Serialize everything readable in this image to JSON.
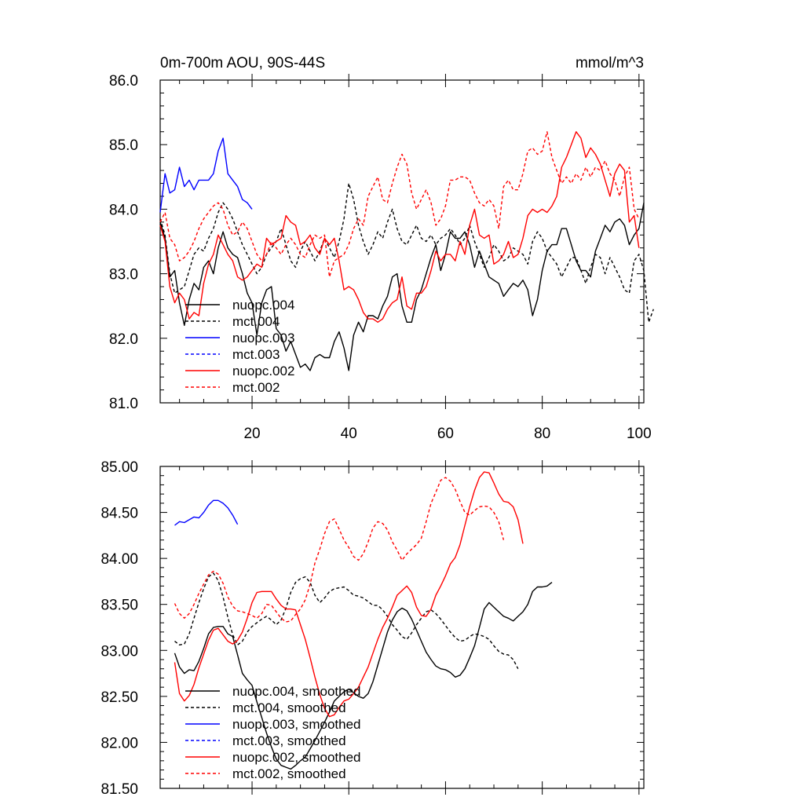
{
  "chart_data": [
    {
      "type": "line",
      "title": "0m-700m AOU, 90S-44S",
      "units": "mmol/m^3",
      "xlim": [
        1,
        101
      ],
      "ylim": [
        81.0,
        86.0
      ],
      "xticks": [
        20,
        40,
        60,
        80,
        100
      ],
      "xtick_labels": [
        "20",
        "40",
        "60",
        "80",
        "100"
      ],
      "yticks": [
        81,
        82,
        83,
        84,
        85,
        86
      ],
      "ytick_labels": [
        "81.0",
        "82.0",
        "83.0",
        "84.0",
        "85.0",
        "86.0"
      ],
      "legend_position": "lower-left",
      "series": [
        {
          "name": "nuopc.004",
          "color": "#000000",
          "dash": "solid",
          "x_start": 1,
          "values": [
            83.8,
            83.55,
            82.95,
            83.05,
            82.55,
            82.2,
            82.6,
            82.85,
            82.75,
            83.1,
            83.2,
            83.0,
            83.4,
            83.65,
            83.4,
            83.3,
            83.25,
            83.0,
            82.7,
            82.55,
            82.05,
            82.55,
            82.75,
            82.8,
            82.15,
            82.05,
            81.8,
            81.95,
            81.75,
            81.55,
            81.6,
            81.5,
            81.7,
            81.75,
            81.7,
            81.7,
            81.95,
            82.1,
            81.85,
            81.5,
            82.05,
            82.25,
            82.1,
            82.35,
            82.35,
            82.3,
            82.5,
            82.65,
            82.95,
            83.0,
            82.5,
            82.25,
            82.25,
            82.6,
            82.75,
            83.0,
            83.25,
            83.45,
            83.05,
            83.3,
            83.65,
            83.55,
            83.55,
            83.65,
            83.45,
            83.1,
            83.35,
            83.15,
            82.95,
            82.9,
            82.85,
            82.65,
            82.75,
            82.85,
            82.8,
            82.9,
            82.75,
            82.35,
            82.6,
            83.05,
            83.35,
            83.45,
            83.45,
            83.7,
            83.7,
            83.45,
            83.2,
            83.05,
            83.05,
            82.95,
            83.35,
            83.55,
            83.75,
            83.65,
            83.8,
            83.85,
            83.75,
            83.45,
            83.6,
            83.7,
            84.1
          ]
        },
        {
          "name": "mct.004",
          "color": "#000000",
          "dash": "dashed",
          "x_start": 1,
          "values": [
            83.85,
            83.6,
            83.0,
            82.7,
            82.75,
            82.8,
            83.05,
            83.3,
            83.4,
            83.35,
            83.55,
            83.7,
            83.95,
            84.1,
            84.0,
            83.85,
            83.65,
            83.45,
            83.3,
            83.15,
            83.0,
            83.1,
            83.3,
            83.4,
            83.5,
            83.7,
            83.45,
            83.2,
            83.1,
            83.35,
            83.5,
            83.35,
            83.2,
            83.35,
            83.55,
            83.4,
            83.25,
            83.5,
            83.85,
            84.4,
            84.15,
            83.75,
            83.5,
            83.3,
            83.45,
            83.65,
            83.55,
            83.8,
            84.0,
            83.7,
            83.5,
            83.45,
            83.6,
            83.75,
            83.55,
            83.5,
            83.6,
            83.45,
            83.55,
            83.6,
            83.7,
            83.6,
            83.45,
            83.55,
            83.75,
            83.5,
            83.3,
            83.1,
            83.25,
            83.45,
            83.35,
            83.2,
            83.25,
            83.4,
            83.35,
            83.3,
            83.15,
            83.5,
            83.65,
            83.55,
            83.35,
            83.25,
            83.15,
            82.95,
            83.1,
            83.25,
            83.25,
            83.05,
            82.85,
            83.1,
            83.3,
            83.25,
            83.0,
            83.25,
            83.1,
            82.95,
            82.75,
            82.7,
            83.2,
            83.3,
            83.05,
            82.25,
            82.45
          ]
        },
        {
          "name": "nuopc.003",
          "color": "#0000ff",
          "dash": "solid",
          "x_start": 1,
          "values": [
            83.95,
            84.55,
            84.25,
            84.3,
            84.65,
            84.35,
            84.45,
            84.3,
            84.45,
            84.45,
            84.45,
            84.55,
            84.9,
            85.1,
            84.55,
            84.45,
            84.35,
            84.15,
            84.1,
            84.0
          ]
        },
        {
          "name": "mct.003",
          "color": "#0000ff",
          "dash": "dashed",
          "x_start": 1,
          "values": []
        },
        {
          "name": "nuopc.002",
          "color": "#ff0000",
          "dash": "solid",
          "x_start": 1,
          "values": [
            83.75,
            83.5,
            82.8,
            82.55,
            82.7,
            82.6,
            82.3,
            82.4,
            82.35,
            82.85,
            83.15,
            83.3,
            83.6,
            83.45,
            83.3,
            83.2,
            82.95,
            82.9,
            82.95,
            83.05,
            83.15,
            83.1,
            83.55,
            83.45,
            83.5,
            83.55,
            83.9,
            83.8,
            83.75,
            83.45,
            83.5,
            83.6,
            83.4,
            83.3,
            83.55,
            83.45,
            83.55,
            83.2,
            82.75,
            82.8,
            82.75,
            82.6,
            82.4,
            82.3,
            82.3,
            82.25,
            82.3,
            82.45,
            82.55,
            82.6,
            82.95,
            82.5,
            82.45,
            82.7,
            82.7,
            82.8,
            83.05,
            83.35,
            83.2,
            83.3,
            83.3,
            83.2,
            83.5,
            83.3,
            83.75,
            84.0,
            83.6,
            83.55,
            83.6,
            83.15,
            83.2,
            83.3,
            83.5,
            83.25,
            83.3,
            83.55,
            83.9,
            84.0,
            83.95,
            84.0,
            83.95,
            84.05,
            84.2,
            84.65,
            84.8,
            85.0,
            85.2,
            85.1,
            84.8,
            84.95,
            84.85,
            84.7,
            84.45,
            84.2,
            84.55,
            84.7,
            84.6,
            83.8,
            83.9,
            83.4
          ]
        },
        {
          "name": "mct.002",
          "color": "#ff0000",
          "dash": "dashed",
          "x_start": 1,
          "values": [
            83.8,
            83.95,
            83.55,
            83.45,
            83.2,
            83.25,
            83.35,
            83.5,
            83.7,
            83.85,
            83.95,
            84.05,
            84.1,
            84.0,
            83.75,
            83.6,
            83.65,
            83.8,
            83.7,
            83.5,
            83.3,
            83.2,
            83.3,
            83.5,
            83.4,
            83.3,
            83.45,
            83.55,
            83.45,
            83.3,
            83.25,
            83.45,
            83.6,
            83.55,
            83.6,
            82.95,
            83.2,
            83.25,
            83.3,
            83.45,
            83.7,
            83.85,
            83.75,
            84.2,
            84.35,
            84.5,
            84.15,
            84.1,
            84.4,
            84.65,
            84.85,
            84.7,
            84.25,
            84.0,
            84.15,
            84.3,
            84.1,
            83.75,
            83.85,
            84.05,
            84.45,
            84.45,
            84.5,
            84.5,
            84.45,
            84.25,
            84.1,
            84.05,
            84.15,
            84.05,
            83.7,
            84.35,
            84.45,
            84.3,
            84.3,
            84.55,
            84.9,
            84.95,
            84.85,
            84.9,
            85.2,
            84.8,
            84.6,
            84.4,
            84.5,
            84.4,
            84.55,
            84.45,
            84.65,
            84.5,
            84.65,
            84.6,
            84.75,
            84.55,
            84.45,
            84.2,
            84.5,
            84.65,
            84.0,
            83.85
          ]
        }
      ]
    },
    {
      "type": "line",
      "title": "",
      "xlim": [
        1,
        101
      ],
      "ylim": [
        81.5,
        85.0
      ],
      "xticks": [
        20,
        40,
        60,
        80,
        100
      ],
      "xtick_labels": [],
      "yticks": [
        81.5,
        82.0,
        82.5,
        83.0,
        83.5,
        84.0,
        84.5,
        85.0
      ],
      "ytick_labels": [
        "81.50",
        "82.00",
        "82.50",
        "83.00",
        "83.50",
        "84.00",
        "84.50",
        "85.00"
      ],
      "legend_position": "lower-left",
      "series": [
        {
          "name": "nuopc.004, smoothed",
          "color": "#000000",
          "dash": "solid",
          "x_start": 4,
          "values": [
            82.97,
            82.82,
            82.75,
            82.79,
            82.78,
            82.88,
            83.02,
            83.18,
            83.25,
            83.26,
            83.26,
            83.18,
            83.15,
            82.95,
            82.75,
            82.68,
            82.62,
            82.44,
            82.27,
            82.1,
            81.95,
            81.82,
            81.75,
            81.73,
            81.71,
            81.75,
            81.8,
            81.84,
            81.93,
            82.02,
            82.12,
            82.22,
            82.33,
            82.45,
            82.5,
            82.55,
            82.58,
            82.54,
            82.5,
            82.48,
            82.53,
            82.66,
            82.84,
            83.02,
            83.2,
            83.33,
            83.42,
            83.46,
            83.43,
            83.34,
            83.22,
            83.1,
            82.98,
            82.9,
            82.83,
            82.8,
            82.79,
            82.76,
            82.71,
            82.73,
            82.8,
            82.92,
            83.05,
            83.25,
            83.45,
            83.52,
            83.47,
            83.42,
            83.37,
            83.35,
            83.32,
            83.37,
            83.42,
            83.5,
            83.64,
            83.69,
            83.69,
            83.7,
            83.74
          ]
        },
        {
          "name": "mct.004, smoothed",
          "color": "#000000",
          "dash": "dashed",
          "x_start": 4,
          "values": [
            83.1,
            83.06,
            83.07,
            83.18,
            83.35,
            83.52,
            83.67,
            83.8,
            83.84,
            83.76,
            83.58,
            83.36,
            83.17,
            83.06,
            83.1,
            83.2,
            83.26,
            83.3,
            83.34,
            83.37,
            83.33,
            83.28,
            83.33,
            83.46,
            83.63,
            83.74,
            83.78,
            83.8,
            83.74,
            83.6,
            83.52,
            83.57,
            83.64,
            83.67,
            83.68,
            83.69,
            83.65,
            83.6,
            83.59,
            83.57,
            83.53,
            83.49,
            83.49,
            83.44,
            83.37,
            83.28,
            83.22,
            83.15,
            83.12,
            83.19,
            83.28,
            83.35,
            83.42,
            83.44,
            83.4,
            83.34,
            83.27,
            83.2,
            83.14,
            83.1,
            83.11,
            83.15,
            83.18,
            83.17,
            83.15,
            83.12,
            83.05,
            82.99,
            82.96,
            82.95,
            82.9,
            82.8
          ]
        },
        {
          "name": "nuopc.003, smoothed",
          "color": "#0000ff",
          "dash": "solid",
          "x_start": 4,
          "values": [
            84.36,
            84.4,
            84.39,
            84.42,
            84.45,
            84.44,
            84.5,
            84.58,
            84.63,
            84.63,
            84.6,
            84.55,
            84.47,
            84.37
          ]
        },
        {
          "name": "mct.003, smoothed",
          "color": "#0000ff",
          "dash": "dashed",
          "x_start": 4,
          "values": []
        },
        {
          "name": "nuopc.002, smoothed",
          "color": "#ff0000",
          "dash": "solid",
          "x_start": 4,
          "values": [
            82.87,
            82.53,
            82.45,
            82.51,
            82.63,
            82.81,
            82.96,
            83.11,
            83.22,
            83.24,
            83.17,
            83.1,
            83.07,
            83.11,
            83.2,
            83.35,
            83.52,
            83.63,
            83.64,
            83.64,
            83.64,
            83.56,
            83.49,
            83.45,
            83.45,
            83.44,
            83.28,
            83.12,
            82.92,
            82.71,
            82.52,
            82.37,
            82.28,
            82.3,
            82.38,
            82.45,
            82.47,
            82.53,
            82.6,
            82.71,
            82.82,
            82.97,
            83.12,
            83.25,
            83.35,
            83.47,
            83.6,
            83.65,
            83.7,
            83.63,
            83.47,
            83.38,
            83.37,
            83.45,
            83.6,
            83.7,
            83.81,
            83.94,
            84.01,
            84.15,
            84.36,
            84.56,
            84.74,
            84.88,
            84.94,
            84.93,
            84.82,
            84.7,
            84.62,
            84.61,
            84.56,
            84.42,
            84.16
          ]
        },
        {
          "name": "mct.002, smoothed",
          "color": "#ff0000",
          "dash": "dashed",
          "x_start": 4,
          "values": [
            83.51,
            83.4,
            83.35,
            83.4,
            83.5,
            83.62,
            83.72,
            83.82,
            83.86,
            83.83,
            83.73,
            83.58,
            83.48,
            83.43,
            83.42,
            83.4,
            83.38,
            83.35,
            83.4,
            83.5,
            83.49,
            83.42,
            83.35,
            83.31,
            83.32,
            83.39,
            83.45,
            83.55,
            83.72,
            83.95,
            84.1,
            84.27,
            84.4,
            84.43,
            84.32,
            84.2,
            84.12,
            84.02,
            83.98,
            84.05,
            84.18,
            84.33,
            84.4,
            84.38,
            84.31,
            84.18,
            84.09,
            83.98,
            84.05,
            84.1,
            84.15,
            84.22,
            84.4,
            84.6,
            84.72,
            84.85,
            84.88,
            84.84,
            84.75,
            84.62,
            84.5,
            84.47,
            84.52,
            84.56,
            84.57,
            84.56,
            84.5,
            84.4,
            84.2
          ]
        }
      ]
    }
  ]
}
